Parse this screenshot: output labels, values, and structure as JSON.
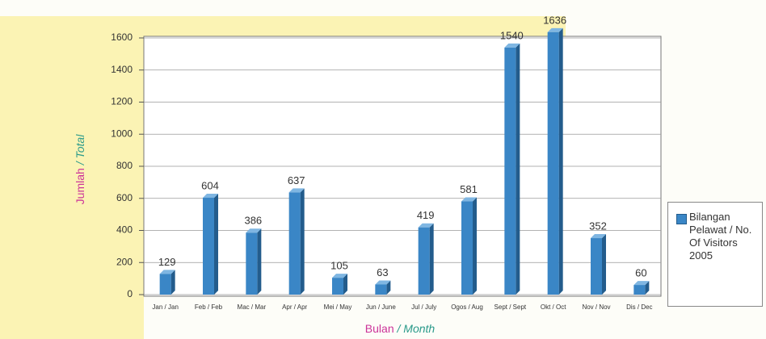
{
  "chart_data": {
    "type": "bar",
    "x_label": [
      "Bulan",
      "/ Month"
    ],
    "y_label": [
      "Jumlah",
      "/ Total"
    ],
    "categories": [
      "Jan / Jan",
      "Feb / Feb",
      "Mac / Mar",
      "Apr / Apr",
      "Mei / May",
      "Jun / June",
      "Jul / July",
      "Ogos / Aug",
      "Sept / Sept",
      "Okt / Oct",
      "Nov / Nov",
      "Dis / Dec"
    ],
    "series": [
      {
        "name": "Bilangan Pelawat / No. Of Visitors 2005",
        "color": "#3a86c6",
        "values": [
          129,
          604,
          386,
          637,
          105,
          63,
          419,
          581,
          1540,
          1636,
          352,
          60
        ]
      }
    ],
    "ylim": [
      0,
      1600
    ],
    "yticks": [
      0,
      200,
      400,
      600,
      800,
      1000,
      1200,
      1400,
      1600
    ],
    "grid": true,
    "legend": "right"
  }
}
